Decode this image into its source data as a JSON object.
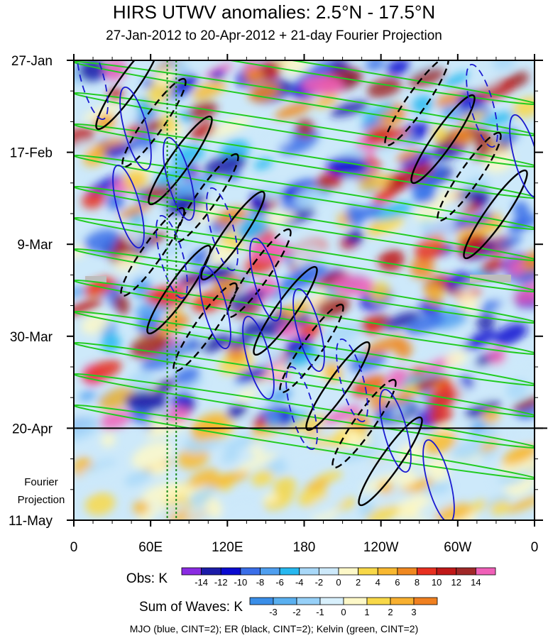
{
  "title": "HIRS UTWV anomalies: 2.5°N - 17.5°N",
  "subtitle": "27-Jan-2012 to 20-Apr-2012 + 21-day Fourier Projection",
  "chart_data": {
    "type": "heatmap",
    "x_tick_labels": [
      "0",
      "60E",
      "120E",
      "180",
      "120W",
      "60W",
      "0"
    ],
    "x_ticks_deg": [
      0,
      60,
      120,
      180,
      240,
      300,
      360
    ],
    "y_tick_labels": [
      "27-Jan",
      "17-Feb",
      "9-Mar",
      "30-Mar",
      "20-Apr",
      "11-May"
    ],
    "y_ticks_day": [
      0,
      21,
      42,
      63,
      84,
      105
    ],
    "projection_start_label": "20-Apr",
    "projection_label_line1": "Fourier",
    "projection_label_line2": "Projection",
    "obs_colorbar": {
      "label": "Obs: K",
      "levels": [
        "-14",
        "-12",
        "-10",
        "-8",
        "-6",
        "-4",
        "-2",
        "0",
        "2",
        "4",
        "6",
        "8",
        "10",
        "12",
        "14"
      ],
      "colors": [
        "#8a2be2",
        "#1c1ca8",
        "#0a0ad0",
        "#3a6ee8",
        "#4f9ff0",
        "#27b8f0",
        "#a8d8f8",
        "#cde9fa",
        "#fdf8c8",
        "#f8d848",
        "#f8b830",
        "#f08820",
        "#e83020",
        "#c01818",
        "#a02828",
        "#f060b8"
      ]
    },
    "waves_colorbar": {
      "label": "Sum of Waves: K",
      "levels": [
        "-3",
        "-2",
        "-1",
        "0",
        "1",
        "2",
        "3"
      ],
      "colors": [
        "#3a8ee8",
        "#5ab0f0",
        "#96d0f8",
        "#d8f0fc",
        "#fdf8c8",
        "#f8d848",
        "#f8b030",
        "#f08020"
      ]
    },
    "contour_legend": "MJO (blue, CINT=2); ER (black, CINT=2); Kelvin (green, CINT=2)",
    "series": [
      {
        "name": "MJO",
        "color": "#1a1ad0"
      },
      {
        "name": "ER",
        "color": "#000000"
      },
      {
        "name": "Kelvin",
        "color": "#22cc22"
      }
    ],
    "reference_lines_deg": [
      73,
      80
    ]
  }
}
